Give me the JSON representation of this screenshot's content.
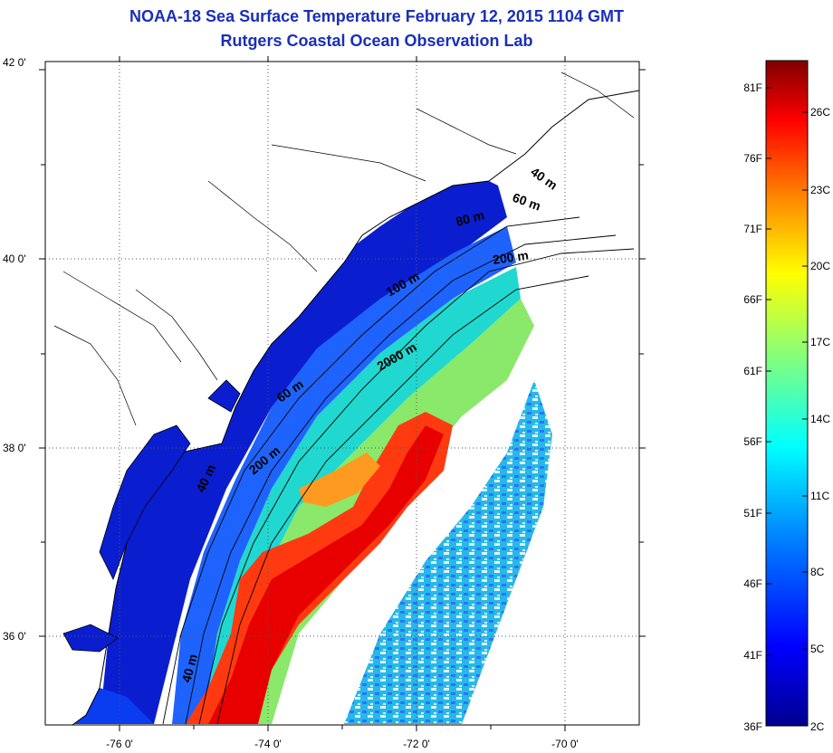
{
  "title": {
    "line1": "NOAA-18 Sea Surface Temperature February 12, 2015 1104 GMT",
    "line2": "Rutgers Coastal Ocean Observation Lab"
  },
  "map": {
    "lat_labels": [
      "42 0'",
      "40 0'",
      "38 0'",
      "36 0'"
    ],
    "lon_labels": [
      "-76 0'",
      "-74 0'",
      "-72 0'",
      "-70 0'"
    ],
    "isobath_labels": [
      "40 m",
      "60 m",
      "80 m",
      "200 m",
      "100 m",
      "2000 m",
      "60 m",
      "200 m",
      "40 m",
      "40 m"
    ],
    "colors": {
      "land": "#ffffff",
      "coast": "#000000",
      "grid": "#555555"
    }
  },
  "colorbar": {
    "f_labels": [
      "81F",
      "76F",
      "71F",
      "66F",
      "61F",
      "56F",
      "51F",
      "46F",
      "41F",
      "36F"
    ],
    "c_labels": [
      "26C",
      "23C",
      "20C",
      "17C",
      "14C",
      "11C",
      "8C",
      "5C",
      "2C"
    ],
    "ramp": [
      "#00008f",
      "#0000ff",
      "#0080ff",
      "#00ffff",
      "#80ff80",
      "#ffff00",
      "#ff8000",
      "#ff0000",
      "#800000"
    ]
  }
}
